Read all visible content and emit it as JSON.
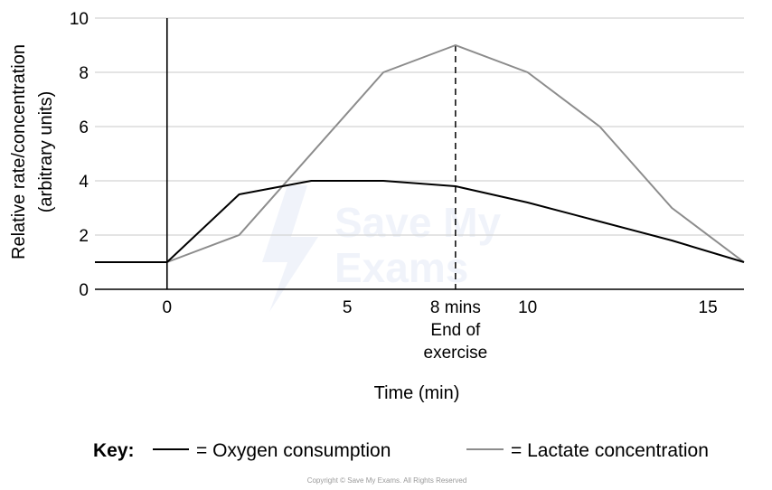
{
  "chart_data": {
    "type": "line",
    "xlabel": "Time (min)",
    "ylabel": [
      "Relative rate/concentration",
      "(arbitrary units)"
    ],
    "xlim": [
      -2,
      16
    ],
    "ylim": [
      0,
      10
    ],
    "x_ticks": [
      0,
      5,
      10,
      15
    ],
    "y_ticks": [
      0,
      2,
      4,
      6,
      8,
      10
    ],
    "grid": "horizontal",
    "series": [
      {
        "name": "Oxygen consumption",
        "color": "#000000",
        "x": [
          -2,
          0,
          2,
          4,
          6,
          8,
          10,
          12,
          14,
          16
        ],
        "y": [
          1,
          1,
          3.5,
          4,
          4,
          3.8,
          3.2,
          2.5,
          1.8,
          1
        ]
      },
      {
        "name": "Lactate concentration",
        "color": "#8c8c8c",
        "x": [
          -2,
          0,
          2,
          6,
          8,
          10,
          12,
          14,
          16
        ],
        "y": [
          1,
          1,
          2,
          8,
          9,
          8,
          6,
          3,
          1
        ]
      }
    ],
    "annotations": [
      {
        "x": 8,
        "style": "dashed-vertical",
        "lines": [
          "8 mins",
          "End of",
          "exercise"
        ]
      }
    ],
    "key": {
      "title": "Key:",
      "oxygen_label": "= Oxygen consumption",
      "lactate_label": "= Lactate concentration"
    }
  },
  "watermark": {
    "line1": "Save My",
    "line2": "Exams",
    "color": "#e4eaf7"
  },
  "copyright": "Copyright © Save My Exams. All Rights Reserved"
}
